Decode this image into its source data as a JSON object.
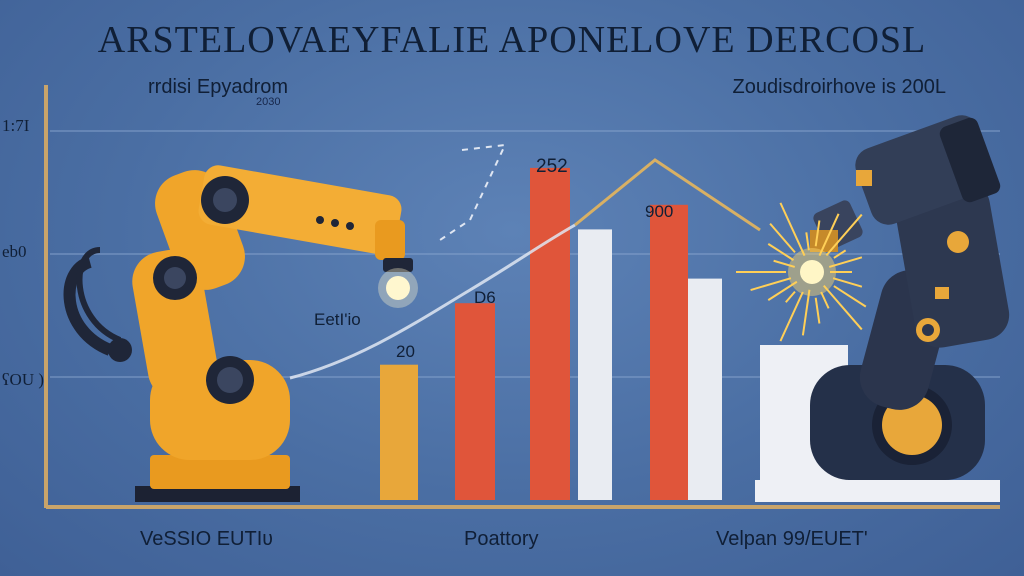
{
  "header": {
    "title": "ARSTELOVAEYFALIE APONELOVE DERCOSL",
    "subtitle_left": "rrdisi Epyadrom",
    "subtitle_left_small": "2030",
    "subtitle_right": "Zoudisdroirhove is 200L"
  },
  "y_ticks": [
    {
      "label": "1:7I",
      "value": 3
    },
    {
      "label": "eb0",
      "value": 2
    },
    {
      "label": "ʕOU )",
      "value": 1
    }
  ],
  "x_labels": [
    "VeSSIO EUTIʋ",
    "Poattory",
    "Velpan 99/EUET'"
  ],
  "annotations": {
    "label_eetio": "EetI'io",
    "label_20": "20",
    "label_d6": "D6",
    "label_252": "252",
    "label_900": "900"
  },
  "colors": {
    "background": "#4a6ea3",
    "yellow_bar": "#e8a73a",
    "red_bar": "#e0553a",
    "white_bar": "#e9ecf2",
    "robot_orange": "#f0a52a",
    "robot_dark": "#2a3347",
    "axis": "#c9a46a"
  },
  "icons": [
    "robot-arm-orange",
    "welding-robot-dark",
    "spark-burst"
  ],
  "chart_data": {
    "type": "bar",
    "title": "ARSTELOVAEYFALIE APONELOVE DERCOSL",
    "xlabel": "",
    "ylabel": "",
    "ylim": [
      0,
      4
    ],
    "grid": true,
    "bars": [
      {
        "value": 1.1,
        "color": "#e8a73a"
      },
      {
        "value": 1.6,
        "color": "#e0553a"
      },
      {
        "value": 2.7,
        "color": "#e0553a"
      },
      {
        "value": 2.2,
        "color": "#e9ecf2"
      },
      {
        "value": 2.4,
        "color": "#e0553a"
      },
      {
        "value": 1.8,
        "color": "#e9ecf2"
      }
    ],
    "trend_line": [
      1.1,
      1.6,
      2.2,
      2.9,
      2.4,
      1.8
    ]
  }
}
